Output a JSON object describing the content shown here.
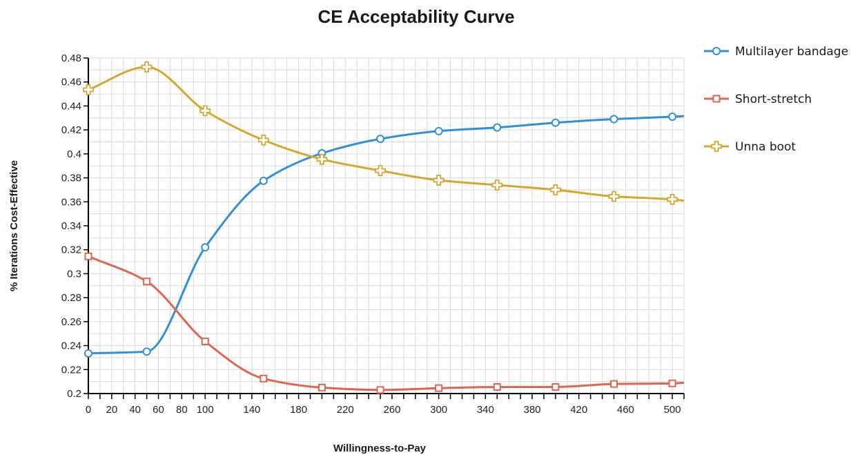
{
  "chart_data": {
    "type": "line",
    "title": "CE Acceptability Curve",
    "xlabel": "Willingness-to-Pay",
    "ylabel": "% Iterations Cost-Effective",
    "xlim": [
      0,
      510
    ],
    "ylim": [
      0.2,
      0.48
    ],
    "x_ticks": [
      "0",
      "20",
      "40",
      "60",
      "80",
      "100",
      "140",
      "180",
      "220",
      "260",
      "300",
      "340",
      "380",
      "420",
      "460",
      "500"
    ],
    "y_ticks": [
      "0.2",
      "0.22",
      "0.24",
      "0.26",
      "0.28",
      "0.3",
      "0.32",
      "0.34",
      "0.36",
      "0.38",
      "0.4",
      "0.42",
      "0.44",
      "0.46",
      "0.48"
    ],
    "grid": true,
    "legend_position": "right",
    "x": [
      0,
      50,
      100,
      150,
      200,
      250,
      300,
      350,
      400,
      450,
      500
    ],
    "series": [
      {
        "name": "Multilayer bandage",
        "color": "#2f8fd9",
        "marker": "circle",
        "values": [
          0.2335,
          0.235,
          0.322,
          0.3775,
          0.4005,
          0.4125,
          0.419,
          0.422,
          0.426,
          0.429,
          0.431
        ],
        "end_value": 0.4315
      },
      {
        "name": "Short-stretch",
        "color": "#e0654f",
        "marker": "square",
        "values": [
          0.3145,
          0.2935,
          0.2435,
          0.2125,
          0.205,
          0.203,
          0.2045,
          0.2055,
          0.2055,
          0.208,
          0.2085
        ],
        "end_value": 0.209
      },
      {
        "name": "Unna boot",
        "color": "#d4a72c",
        "marker": "plus",
        "values": [
          0.4535,
          0.4725,
          0.436,
          0.4115,
          0.3955,
          0.386,
          0.378,
          0.374,
          0.37,
          0.3645,
          0.362
        ],
        "end_value": 0.361
      }
    ]
  }
}
